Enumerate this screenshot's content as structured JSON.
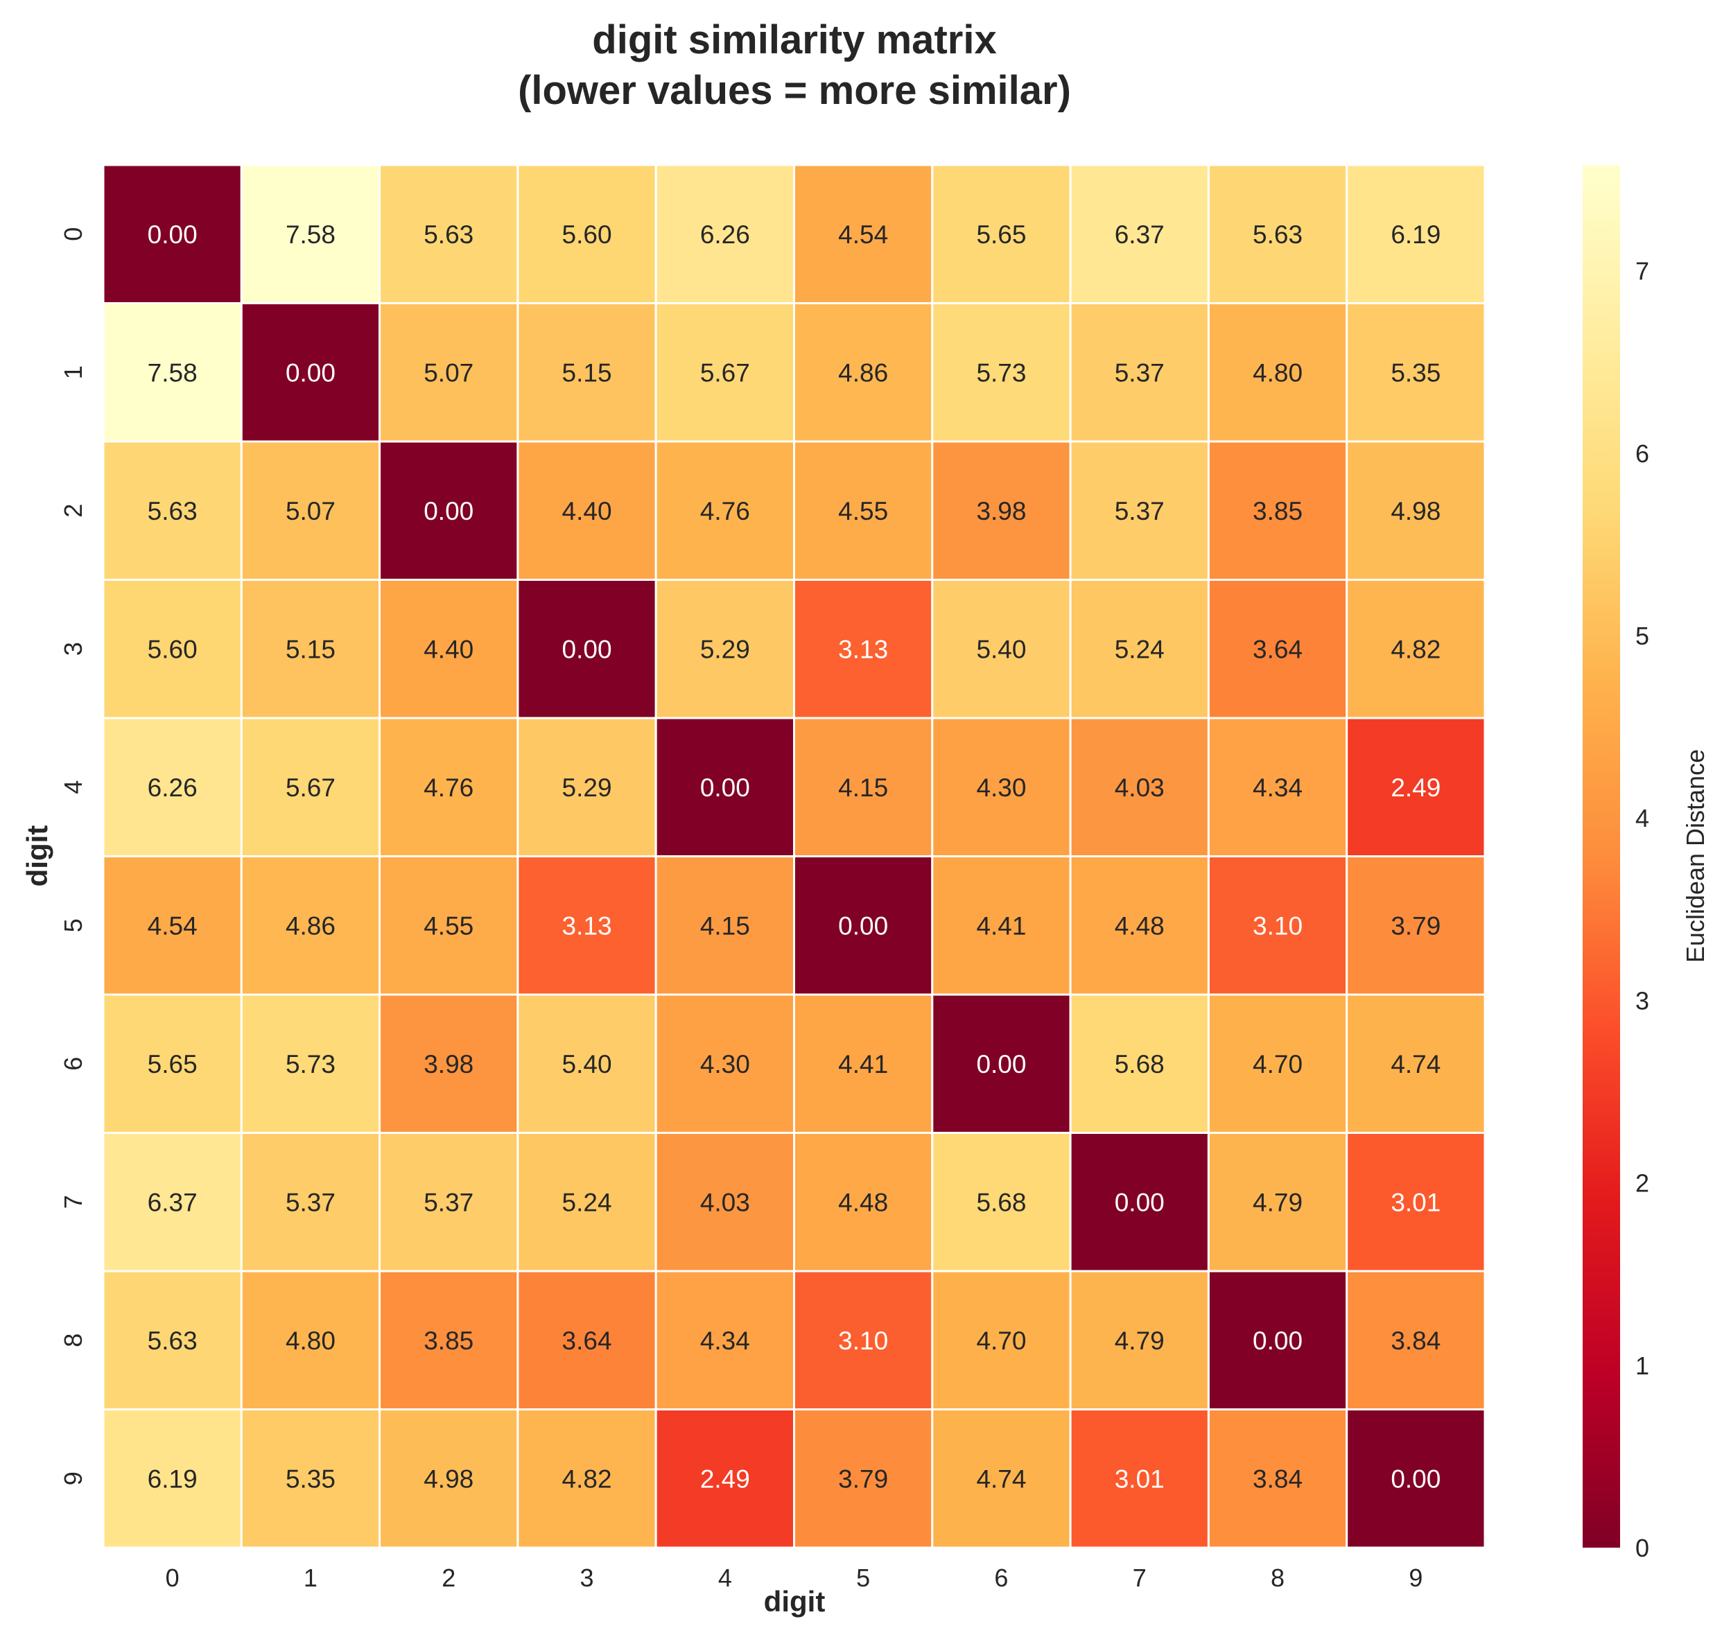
{
  "chart_data": {
    "type": "heatmap",
    "title": "digit similarity matrix",
    "subtitle": "(lower values = more similar)",
    "xlabel": "digit",
    "ylabel": "digit",
    "x_categories": [
      "0",
      "1",
      "2",
      "3",
      "4",
      "5",
      "6",
      "7",
      "8",
      "9"
    ],
    "y_categories": [
      "0",
      "1",
      "2",
      "3",
      "4",
      "5",
      "6",
      "7",
      "8",
      "9"
    ],
    "values": [
      [
        0.0,
        7.58,
        5.63,
        5.6,
        6.26,
        4.54,
        5.65,
        6.37,
        5.63,
        6.19
      ],
      [
        7.58,
        0.0,
        5.07,
        5.15,
        5.67,
        4.86,
        5.73,
        5.37,
        4.8,
        5.35
      ],
      [
        5.63,
        5.07,
        0.0,
        4.4,
        4.76,
        4.55,
        3.98,
        5.37,
        3.85,
        4.98
      ],
      [
        5.6,
        5.15,
        4.4,
        0.0,
        5.29,
        3.13,
        5.4,
        5.24,
        3.64,
        4.82
      ],
      [
        6.26,
        5.67,
        4.76,
        5.29,
        0.0,
        4.15,
        4.3,
        4.03,
        4.34,
        2.49
      ],
      [
        4.54,
        4.86,
        4.55,
        3.13,
        4.15,
        0.0,
        4.41,
        4.48,
        3.1,
        3.79
      ],
      [
        5.65,
        5.73,
        3.98,
        5.4,
        4.3,
        4.41,
        0.0,
        5.68,
        4.7,
        4.74
      ],
      [
        6.37,
        5.37,
        5.37,
        5.24,
        4.03,
        4.48,
        5.68,
        0.0,
        4.79,
        3.01
      ],
      [
        5.63,
        4.8,
        3.85,
        3.64,
        4.34,
        3.1,
        4.7,
        4.79,
        0.0,
        3.84
      ],
      [
        6.19,
        5.35,
        4.98,
        4.82,
        2.49,
        3.79,
        4.74,
        3.01,
        3.84,
        0.0
      ]
    ],
    "value_format": "0.00",
    "colormap": "YlOrRd_r",
    "color_stops": [
      "#800026",
      "#bd0026",
      "#e31a1c",
      "#fc4e2a",
      "#fd8d3c",
      "#feb24c",
      "#fed976",
      "#ffeda0",
      "#ffffcc"
    ],
    "vmin": 0,
    "vmax": 7.58,
    "grid_line_color": "#ffffff",
    "colorbar": {
      "label": "Euclidean Distance",
      "ticks": [
        "0",
        "1",
        "2",
        "3",
        "4",
        "5",
        "6",
        "7"
      ],
      "placement": "right"
    }
  }
}
